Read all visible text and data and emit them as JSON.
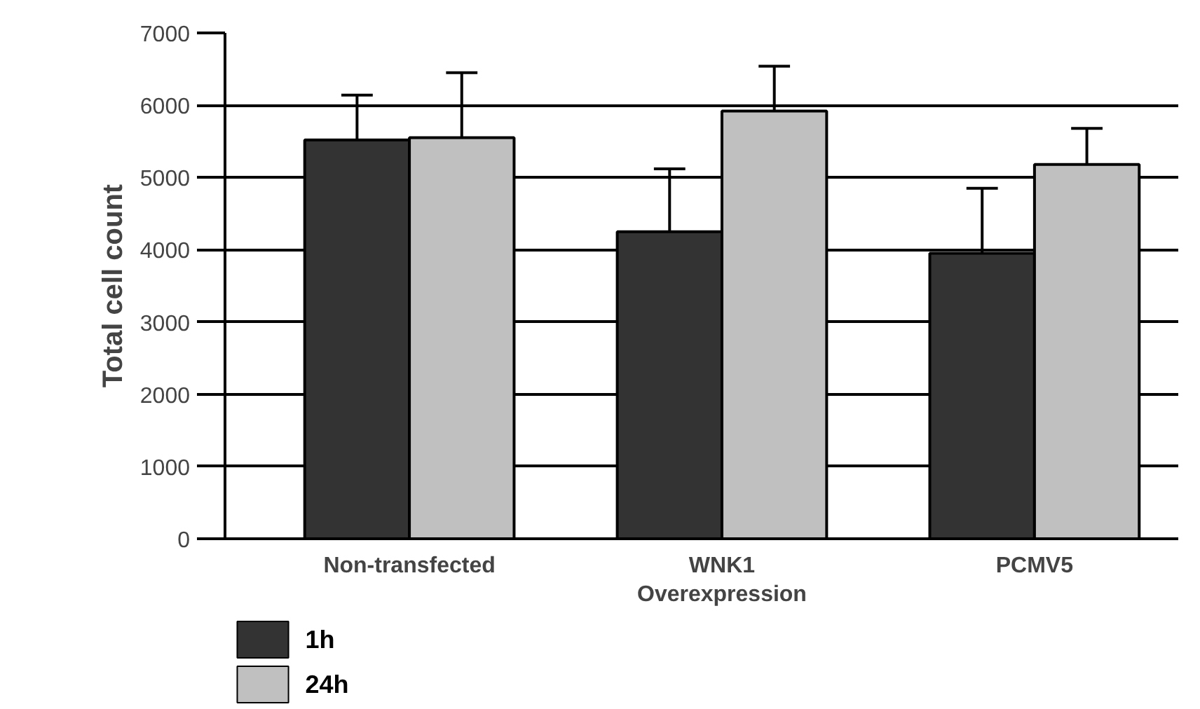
{
  "chart_data": {
    "type": "bar",
    "ylabel": "Total cell count",
    "categories": [
      "Non-transfected",
      "WNK1\nOverexpression",
      "PCMV5"
    ],
    "series": [
      {
        "name": "1h",
        "color": "#333333",
        "values": [
          5520,
          4250,
          3950
        ],
        "errors": [
          [
            5520,
            6140
          ],
          [
            4250,
            5120
          ],
          [
            3950,
            4850
          ]
        ]
      },
      {
        "name": "24h",
        "color": "#c0c0c0",
        "values": [
          5550,
          5920,
          5180
        ],
        "errors": [
          [
            5550,
            6450
          ],
          [
            5920,
            6540
          ],
          [
            5180,
            5680
          ]
        ]
      }
    ],
    "ylim": [
      0,
      7000
    ],
    "yticks": [
      0,
      1000,
      2000,
      3000,
      4000,
      5000,
      6000,
      7000
    ],
    "grid": "y",
    "legend": "bottom left"
  }
}
